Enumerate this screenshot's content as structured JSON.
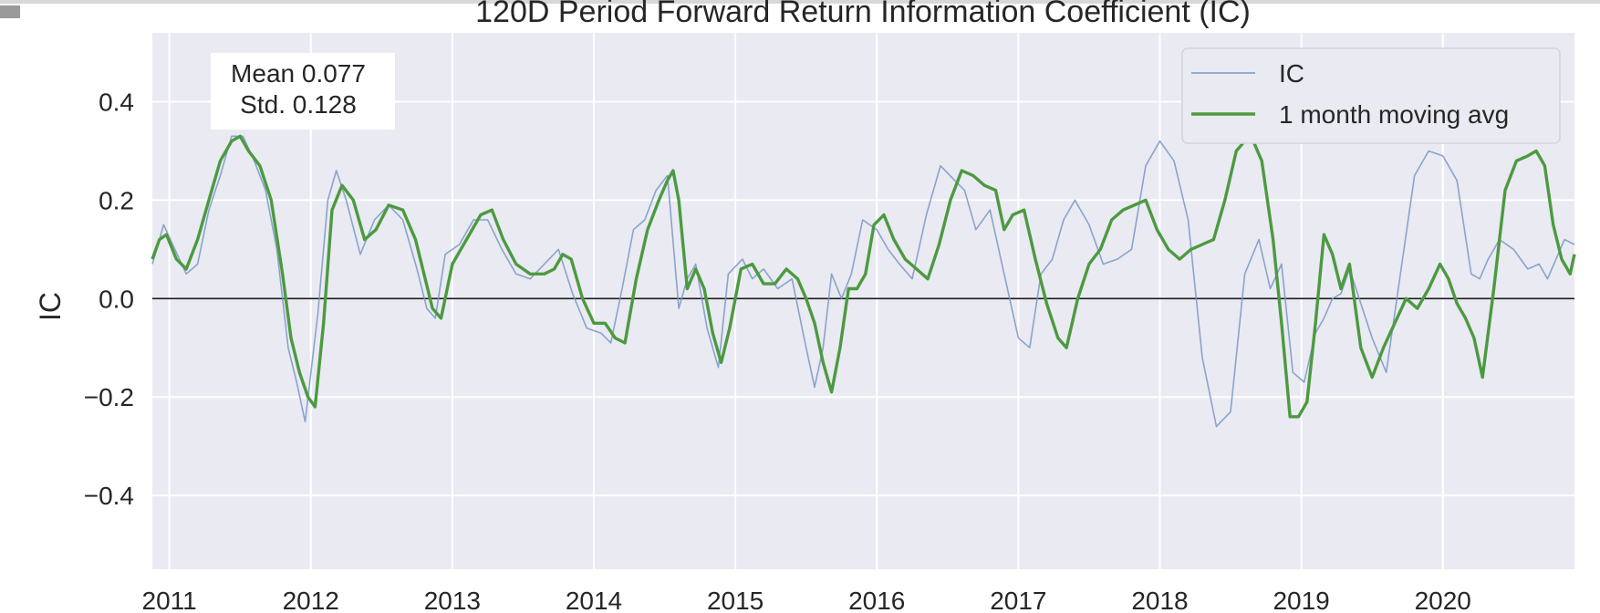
{
  "chart_data": {
    "type": "line",
    "title": "120D Period Forward Return Information Coefficient (IC)",
    "xlabel": "",
    "ylabel": "IC",
    "xlim": [
      2010.88,
      2020.93
    ],
    "ylim": [
      -0.55,
      0.54
    ],
    "x_ticks": [
      "2011",
      "2012",
      "2013",
      "2014",
      "2015",
      "2016",
      "2017",
      "2018",
      "2019",
      "2020"
    ],
    "y_ticks": [
      -0.4,
      -0.2,
      0.0,
      0.2,
      0.4
    ],
    "y_tick_labels": [
      "−0.4",
      "−0.2",
      "0.0",
      "0.2",
      "0.4"
    ],
    "grid": true,
    "zero_line": true,
    "legend_position": "top-right",
    "annotation": {
      "mean_text": "Mean 0.077",
      "std_text": "Std. 0.128"
    },
    "colors": {
      "plot_background": "#EAEAF2",
      "grid": "#FFFFFF",
      "ic_line": "#7897C6",
      "moving_avg": "#4C9A40",
      "zero_line": "#1A1A1A"
    },
    "series": [
      {
        "name": "IC",
        "x": [
          2010.88,
          2010.96,
          2011.04,
          2011.12,
          2011.2,
          2011.28,
          2011.36,
          2011.44,
          2011.52,
          2011.6,
          2011.68,
          2011.76,
          2011.84,
          2011.9,
          2011.96,
          2012.05,
          2012.12,
          2012.18,
          2012.25,
          2012.35,
          2012.45,
          2012.55,
          2012.65,
          2012.75,
          2012.82,
          2012.88,
          2012.95,
          2013.05,
          2013.15,
          2013.25,
          2013.35,
          2013.45,
          2013.55,
          2013.65,
          2013.75,
          2013.85,
          2013.95,
          2014.05,
          2014.12,
          2014.2,
          2014.28,
          2014.36,
          2014.44,
          2014.52,
          2014.6,
          2014.66,
          2014.72,
          2014.8,
          2014.88,
          2014.95,
          2015.05,
          2015.12,
          2015.2,
          2015.3,
          2015.4,
          2015.5,
          2015.56,
          2015.62,
          2015.68,
          2015.75,
          2015.82,
          2015.9,
          2016.0,
          2016.08,
          2016.16,
          2016.25,
          2016.35,
          2016.45,
          2016.55,
          2016.62,
          2016.7,
          2016.8,
          2016.9,
          2017.0,
          2017.08,
          2017.16,
          2017.24,
          2017.32,
          2017.4,
          2017.5,
          2017.6,
          2017.7,
          2017.8,
          2017.9,
          2018.0,
          2018.1,
          2018.2,
          2018.3,
          2018.4,
          2018.5,
          2018.6,
          2018.7,
          2018.78,
          2018.86,
          2018.94,
          2019.02,
          2019.1,
          2019.16,
          2019.22,
          2019.28,
          2019.34,
          2019.42,
          2019.5,
          2019.6,
          2019.7,
          2019.8,
          2019.9,
          2020.0,
          2020.1,
          2020.2,
          2020.26,
          2020.32,
          2020.4,
          2020.5,
          2020.6,
          2020.68,
          2020.74,
          2020.8,
          2020.86,
          2020.93
        ],
        "values": [
          0.07,
          0.15,
          0.1,
          0.05,
          0.07,
          0.18,
          0.25,
          0.33,
          0.33,
          0.28,
          0.22,
          0.1,
          -0.1,
          -0.17,
          -0.25,
          -0.03,
          0.2,
          0.26,
          0.2,
          0.09,
          0.16,
          0.19,
          0.16,
          0.06,
          -0.02,
          -0.04,
          0.09,
          0.11,
          0.16,
          0.16,
          0.1,
          0.05,
          0.04,
          0.07,
          0.1,
          0.01,
          -0.06,
          -0.07,
          -0.09,
          0.02,
          0.14,
          0.16,
          0.22,
          0.25,
          -0.02,
          0.04,
          0.07,
          -0.06,
          -0.14,
          0.05,
          0.08,
          0.04,
          0.06,
          0.02,
          0.04,
          -0.1,
          -0.18,
          -0.1,
          0.05,
          0.0,
          0.05,
          0.16,
          0.14,
          0.1,
          0.07,
          0.04,
          0.17,
          0.27,
          0.24,
          0.22,
          0.14,
          0.18,
          0.05,
          -0.08,
          -0.1,
          0.05,
          0.08,
          0.16,
          0.2,
          0.15,
          0.07,
          0.08,
          0.1,
          0.27,
          0.32,
          0.28,
          0.16,
          -0.12,
          -0.26,
          -0.23,
          0.05,
          0.12,
          0.02,
          0.07,
          -0.15,
          -0.17,
          -0.07,
          -0.04,
          0.0,
          0.01,
          0.06,
          -0.01,
          -0.08,
          -0.15,
          0.05,
          0.25,
          0.3,
          0.29,
          0.24,
          0.05,
          0.04,
          0.08,
          0.12,
          0.1,
          0.06,
          0.07,
          0.04,
          0.08,
          0.12,
          0.11
        ]
      },
      {
        "name": "1 month moving avg",
        "x": [
          2010.88,
          2010.93,
          2010.98,
          2011.05,
          2011.12,
          2011.2,
          2011.28,
          2011.36,
          2011.44,
          2011.5,
          2011.56,
          2011.64,
          2011.72,
          2011.8,
          2011.86,
          2011.92,
          2011.98,
          2012.03,
          2012.09,
          2012.15,
          2012.22,
          2012.3,
          2012.38,
          2012.46,
          2012.55,
          2012.65,
          2012.74,
          2012.8,
          2012.86,
          2012.92,
          2013.0,
          2013.1,
          2013.2,
          2013.28,
          2013.36,
          2013.45,
          2013.55,
          2013.65,
          2013.72,
          2013.78,
          2013.84,
          2013.92,
          2014.0,
          2014.08,
          2014.15,
          2014.22,
          2014.3,
          2014.38,
          2014.46,
          2014.52,
          2014.56,
          2014.6,
          2014.66,
          2014.72,
          2014.78,
          2014.84,
          2014.9,
          2014.96,
          2015.04,
          2015.12,
          2015.2,
          2015.28,
          2015.36,
          2015.44,
          2015.5,
          2015.56,
          2015.62,
          2015.68,
          2015.74,
          2015.8,
          2015.86,
          2015.92,
          2015.98,
          2016.05,
          2016.12,
          2016.2,
          2016.28,
          2016.36,
          2016.44,
          2016.52,
          2016.6,
          2016.68,
          2016.76,
          2016.84,
          2016.9,
          2016.96,
          2017.04,
          2017.12,
          2017.2,
          2017.28,
          2017.34,
          2017.42,
          2017.5,
          2017.58,
          2017.66,
          2017.74,
          2017.82,
          2017.9,
          2017.98,
          2018.06,
          2018.14,
          2018.22,
          2018.3,
          2018.38,
          2018.46,
          2018.54,
          2018.6,
          2018.66,
          2018.72,
          2018.8,
          2018.86,
          2018.92,
          2018.98,
          2019.04,
          2019.1,
          2019.16,
          2019.22,
          2019.28,
          2019.34,
          2019.42,
          2019.5,
          2019.58,
          2019.66,
          2019.74,
          2019.82,
          2019.9,
          2019.98,
          2020.04,
          2020.1,
          2020.16,
          2020.22,
          2020.28,
          2020.36,
          2020.44,
          2020.52,
          2020.6,
          2020.66,
          2020.72,
          2020.78,
          2020.84,
          2020.9,
          2020.93
        ],
        "values": [
          0.08,
          0.12,
          0.13,
          0.08,
          0.06,
          0.12,
          0.2,
          0.28,
          0.32,
          0.33,
          0.3,
          0.27,
          0.2,
          0.05,
          -0.08,
          -0.15,
          -0.2,
          -0.22,
          -0.05,
          0.18,
          0.23,
          0.2,
          0.12,
          0.14,
          0.19,
          0.18,
          0.12,
          0.05,
          -0.02,
          -0.04,
          0.07,
          0.12,
          0.17,
          0.18,
          0.12,
          0.07,
          0.05,
          0.05,
          0.06,
          0.09,
          0.08,
          0.0,
          -0.05,
          -0.05,
          -0.08,
          -0.09,
          0.04,
          0.14,
          0.2,
          0.24,
          0.26,
          0.2,
          0.02,
          0.06,
          0.02,
          -0.07,
          -0.13,
          -0.06,
          0.06,
          0.07,
          0.03,
          0.03,
          0.06,
          0.04,
          0.0,
          -0.05,
          -0.13,
          -0.19,
          -0.1,
          0.02,
          0.02,
          0.05,
          0.15,
          0.17,
          0.12,
          0.08,
          0.06,
          0.04,
          0.11,
          0.2,
          0.26,
          0.25,
          0.23,
          0.22,
          0.14,
          0.17,
          0.18,
          0.08,
          -0.01,
          -0.08,
          -0.1,
          0.0,
          0.07,
          0.1,
          0.16,
          0.18,
          0.19,
          0.2,
          0.14,
          0.1,
          0.08,
          0.1,
          0.11,
          0.12,
          0.2,
          0.3,
          0.32,
          0.32,
          0.28,
          0.12,
          -0.05,
          -0.24,
          -0.24,
          -0.21,
          -0.05,
          0.13,
          0.09,
          0.02,
          0.07,
          -0.1,
          -0.16,
          -0.1,
          -0.05,
          0.0,
          -0.02,
          0.02,
          0.07,
          0.04,
          -0.01,
          -0.04,
          -0.08,
          -0.16,
          0.02,
          0.22,
          0.28,
          0.29,
          0.3,
          0.27,
          0.15,
          0.08,
          0.05,
          0.09
        ]
      }
    ]
  }
}
